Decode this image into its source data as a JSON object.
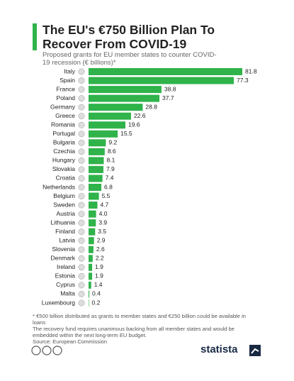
{
  "chart_data": {
    "type": "bar",
    "orientation": "horizontal",
    "title": "The EU's €750 Billion Plan To Recover From COVID-19",
    "subtitle": "Proposed grants for EU member states to counter COVID-19 recession (€ billions)*",
    "categories": [
      "Italy",
      "Spain",
      "France",
      "Poland",
      "Germany",
      "Greece",
      "Romania",
      "Portugal",
      "Bulgaria",
      "Czechia",
      "Hungary",
      "Slovakia",
      "Croatia",
      "Netherlands",
      "Belgium",
      "Sweden",
      "Austria",
      "Lithuania",
      "Finland",
      "Latvia",
      "Slovenia",
      "Denmark",
      "Ireland",
      "Estonia",
      "Cyprus",
      "Malta",
      "Luxembourg"
    ],
    "values": [
      81.8,
      77.3,
      38.8,
      37.7,
      28.8,
      22.6,
      19.6,
      15.5,
      9.2,
      8.6,
      8.1,
      7.9,
      7.4,
      6.8,
      5.5,
      4.7,
      4.0,
      3.9,
      3.5,
      2.9,
      2.6,
      2.2,
      1.9,
      1.9,
      1.4,
      0.4,
      0.2
    ],
    "value_labels": [
      "81.8",
      "77.3",
      "38.8",
      "37.7",
      "28.8",
      "22.6",
      "19.6",
      "15.5",
      "9.2",
      "8.6",
      "8.1",
      "7.9",
      "7.4",
      "6.8",
      "5.5",
      "4.7",
      "4.0",
      "3.9",
      "3.5",
      "2.9",
      "2.6",
      "2.2",
      "1.9",
      "1.9",
      "1.4",
      "0.4",
      "0.2"
    ],
    "color": "#2fb34a",
    "notes": [
      "* €500 billion distributed as grants to member states and €250 billion could be available in loans",
      "The recovery fund requires unanimous backing from all member states and would be embedded within the next long-term EU budget."
    ],
    "source": "Source: European Commission",
    "brand": "statista"
  }
}
